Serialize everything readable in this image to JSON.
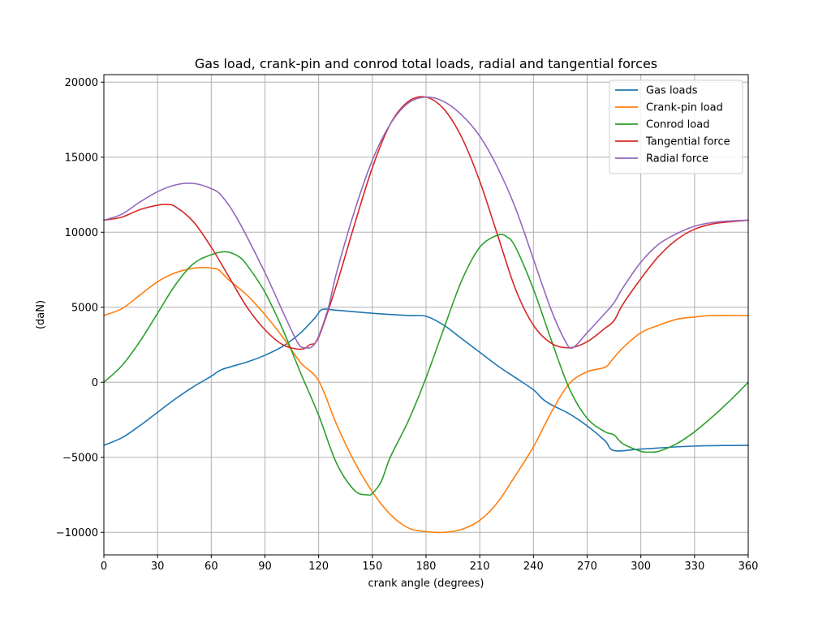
{
  "chart_data": {
    "type": "line",
    "title": "Gas load, crank-pin and conrod total loads, radial and tangential forces",
    "xlabel": "crank angle (degrees)",
    "ylabel": "(daN)",
    "xlim": [
      0,
      360
    ],
    "ylim": [
      -11500,
      20500
    ],
    "xticks": [
      0,
      30,
      60,
      90,
      120,
      150,
      180,
      210,
      240,
      270,
      300,
      330,
      360
    ],
    "yticks": [
      -10000,
      -5000,
      0,
      5000,
      10000,
      15000,
      20000
    ],
    "xtick_labels": [
      "0",
      "30",
      "60",
      "90",
      "120",
      "150",
      "180",
      "210",
      "240",
      "270",
      "300",
      "330",
      "360"
    ],
    "ytick_labels": [
      "−10000",
      "−5000",
      "0",
      "5000",
      "10000",
      "15000",
      "20000"
    ],
    "grid": true,
    "legend_position": "top-right",
    "series": [
      {
        "name": "Gas loads",
        "color": "#1f77b4",
        "x": [
          0,
          10,
          20,
          30,
          40,
          50,
          60,
          66,
          80,
          90,
          100,
          110,
          118,
          122,
          130,
          150,
          170,
          180,
          190,
          200,
          210,
          220,
          230,
          240,
          245,
          250,
          260,
          270,
          280,
          285,
          300,
          330,
          360
        ],
        "y": [
          -4200,
          -3700,
          -2900,
          -2000,
          -1100,
          -300,
          400,
          850,
          1350,
          1800,
          2400,
          3300,
          4300,
          4850,
          4800,
          4600,
          4450,
          4400,
          3800,
          2900,
          2000,
          1100,
          300,
          -500,
          -1100,
          -1500,
          -2100,
          -2900,
          -3900,
          -4550,
          -4450,
          -4250,
          -4200
        ]
      },
      {
        "name": "Crank-pin load",
        "color": "#ff7f0e",
        "x": [
          0,
          10,
          20,
          30,
          40,
          50,
          57,
          60,
          64,
          70,
          80,
          90,
          100,
          110,
          120,
          130,
          140,
          150,
          160,
          170,
          180,
          190,
          200,
          210,
          220,
          230,
          240,
          250,
          260,
          270,
          280,
          284,
          290,
          300,
          310,
          320,
          330,
          340,
          360
        ],
        "y": [
          4450,
          4900,
          5800,
          6700,
          7300,
          7600,
          7650,
          7600,
          7500,
          6800,
          5800,
          4500,
          3000,
          1300,
          100,
          -2800,
          -5300,
          -7300,
          -8800,
          -9700,
          -9950,
          -10000,
          -9800,
          -9200,
          -8000,
          -6200,
          -4300,
          -2000,
          -100,
          700,
          1000,
          1500,
          2300,
          3300,
          3800,
          4200,
          4350,
          4450,
          4450
        ]
      },
      {
        "name": "Conrod load",
        "color": "#2ca02c",
        "x": [
          0,
          10,
          20,
          30,
          40,
          50,
          60,
          68,
          75,
          80,
          90,
          100,
          110,
          120,
          130,
          140,
          147,
          150,
          155,
          160,
          170,
          180,
          190,
          200,
          210,
          220,
          225,
          230,
          240,
          250,
          260,
          270,
          280,
          285,
          290,
          300,
          305,
          310,
          320,
          330,
          340,
          350,
          360
        ],
        "y": [
          0,
          1100,
          2700,
          4600,
          6500,
          7900,
          8500,
          8700,
          8400,
          7800,
          6000,
          3500,
          600,
          -2200,
          -5400,
          -7200,
          -7500,
          -7400,
          -6600,
          -5000,
          -2600,
          300,
          3600,
          6800,
          9000,
          9800,
          9700,
          9000,
          6200,
          2800,
          -400,
          -2400,
          -3300,
          -3500,
          -4100,
          -4600,
          -4650,
          -4600,
          -4100,
          -3300,
          -2300,
          -1200,
          0
        ]
      },
      {
        "name": "Tangential force",
        "color": "#d62728",
        "x": [
          0,
          10,
          20,
          30,
          35,
          40,
          50,
          60,
          70,
          80,
          90,
          100,
          110,
          115,
          120,
          130,
          140,
          150,
          160,
          170,
          180,
          190,
          200,
          210,
          220,
          230,
          240,
          250,
          260,
          270,
          280,
          285,
          290,
          300,
          310,
          320,
          330,
          340,
          350,
          360
        ],
        "y": [
          10800,
          11000,
          11500,
          11800,
          11850,
          11700,
          10700,
          9000,
          7000,
          5000,
          3500,
          2500,
          2200,
          2500,
          3000,
          6500,
          10500,
          14300,
          17200,
          18700,
          19000,
          18200,
          16300,
          13400,
          9800,
          6200,
          3800,
          2600,
          2300,
          2700,
          3600,
          4100,
          5200,
          6900,
          8400,
          9500,
          10200,
          10550,
          10700,
          10800
        ]
      },
      {
        "name": "Radial force",
        "color": "#9467bd",
        "x": [
          0,
          10,
          20,
          30,
          40,
          50,
          60,
          66,
          75,
          90,
          100,
          108,
          112,
          118,
          125,
          130,
          140,
          150,
          160,
          170,
          180,
          190,
          200,
          210,
          220,
          230,
          240,
          250,
          258,
          262,
          270,
          280,
          285,
          290,
          300,
          310,
          320,
          330,
          340,
          350,
          360
        ],
        "y": [
          10800,
          11200,
          12000,
          12700,
          13150,
          13250,
          12900,
          12400,
          10800,
          7300,
          4700,
          2700,
          2300,
          2600,
          4800,
          7300,
          11400,
          14800,
          17200,
          18600,
          19000,
          18700,
          17800,
          16400,
          14300,
          11600,
          8200,
          4800,
          2700,
          2300,
          3300,
          4600,
          5300,
          6300,
          8000,
          9200,
          9900,
          10400,
          10650,
          10750,
          10800
        ]
      }
    ]
  }
}
